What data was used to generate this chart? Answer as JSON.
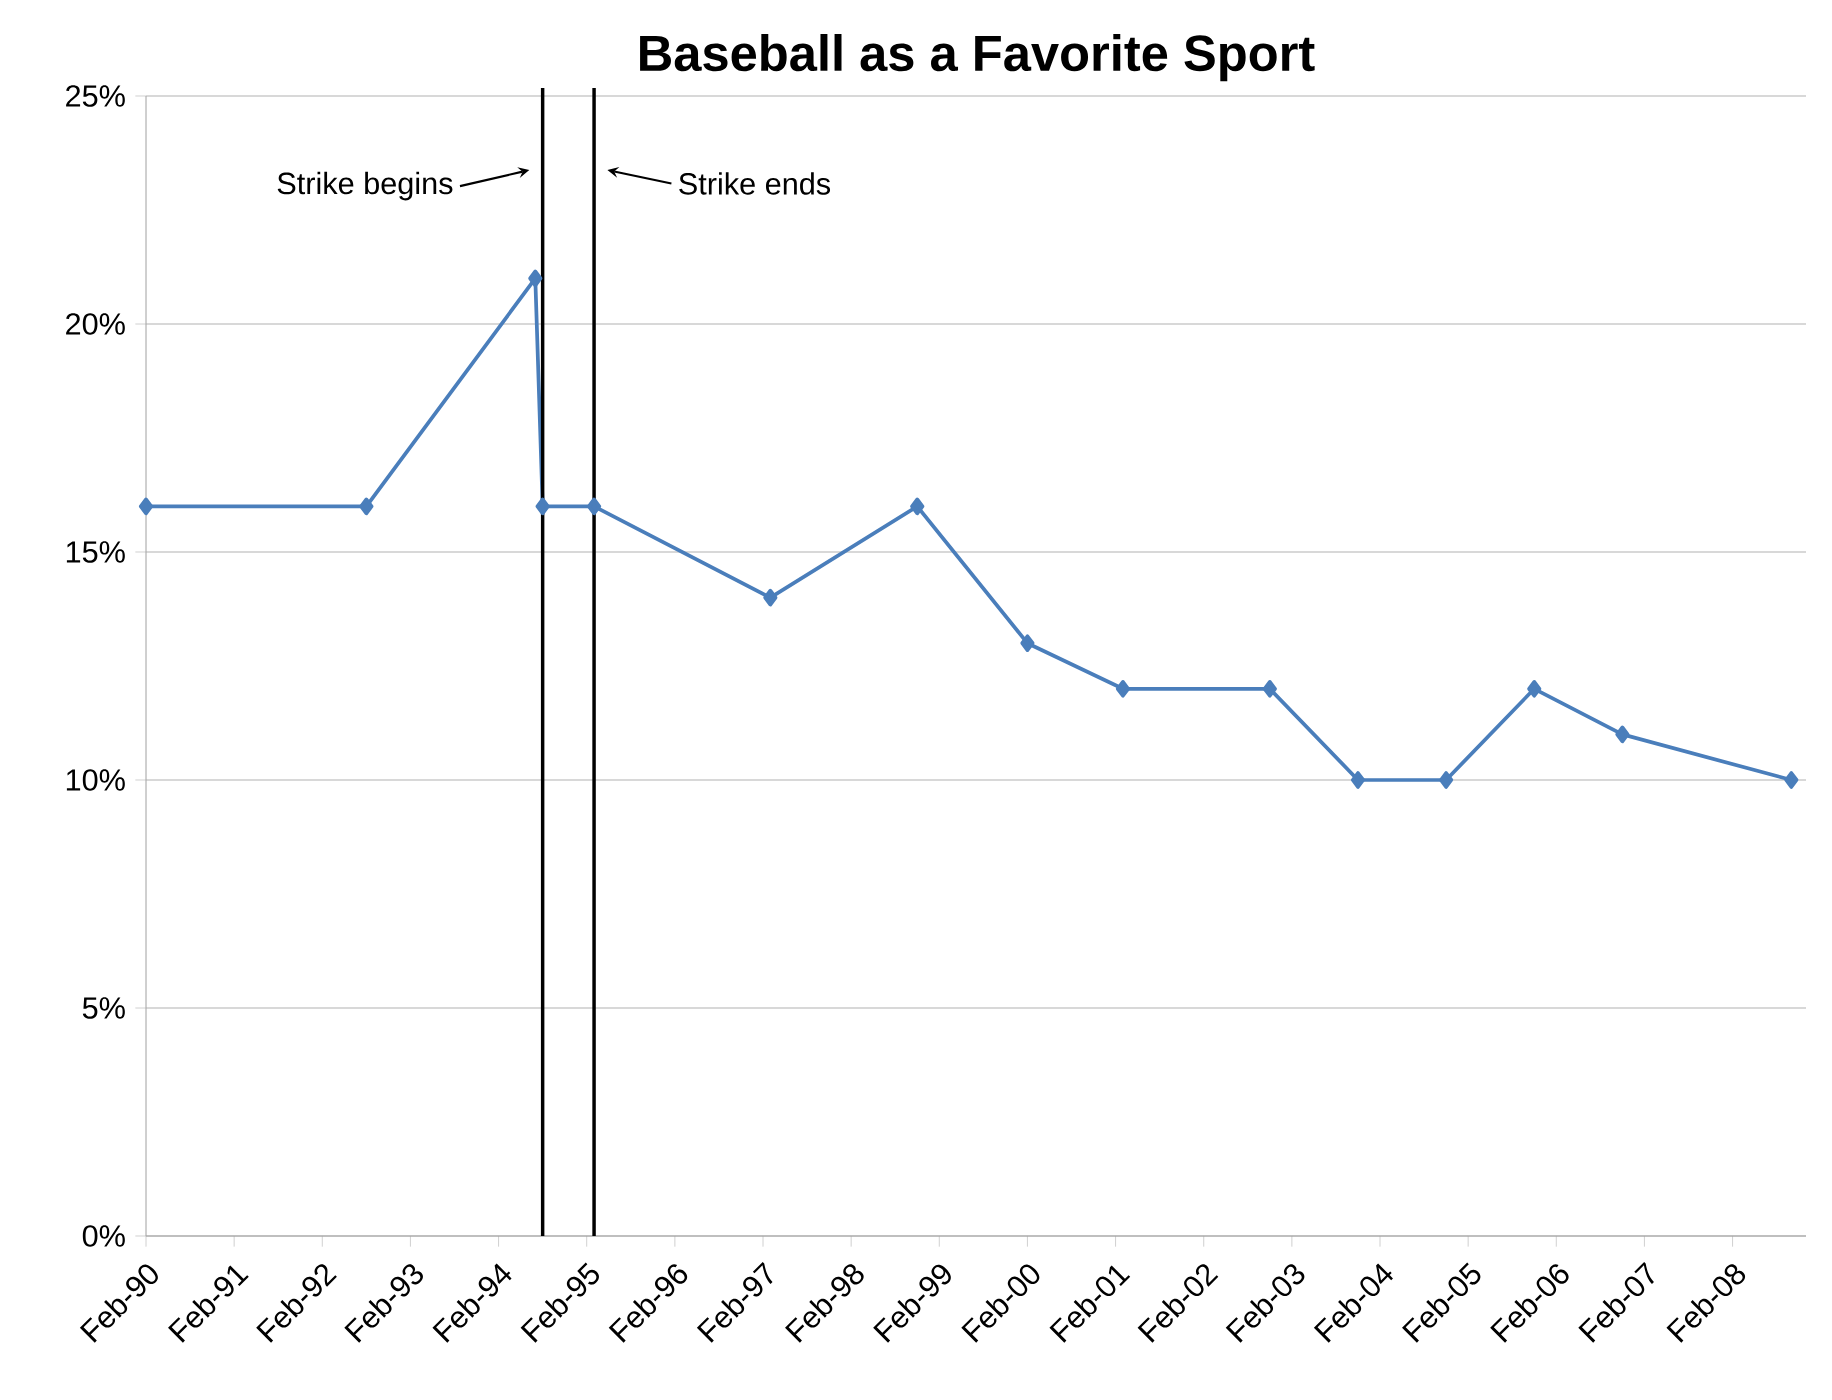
{
  "chart_data": {
    "type": "line",
    "title": "Baseball as a Favorite Sport",
    "x": [
      "1990-02",
      "1992-08",
      "1994-07",
      "1994-08",
      "1995-03",
      "1997-03",
      "1998-11",
      "2000-02",
      "2001-03",
      "2002-11",
      "2003-11",
      "2004-11",
      "2005-11",
      "2006-11",
      "2008-10"
    ],
    "series": [
      {
        "color": "#4a7ebb",
        "values": [
          16,
          16,
          21,
          16,
          16,
          14,
          16,
          13,
          12,
          12,
          10,
          10,
          12,
          11,
          10
        ]
      }
    ],
    "xlim": [
      "1990-02",
      "2008-12"
    ],
    "xticks": [
      {
        "value": "1990-02",
        "label": "Feb-90"
      },
      {
        "value": "1991-02",
        "label": "Feb-91"
      },
      {
        "value": "1992-02",
        "label": "Feb-92"
      },
      {
        "value": "1993-02",
        "label": "Feb-93"
      },
      {
        "value": "1994-02",
        "label": "Feb-94"
      },
      {
        "value": "1995-02",
        "label": "Feb-95"
      },
      {
        "value": "1996-02",
        "label": "Feb-96"
      },
      {
        "value": "1997-02",
        "label": "Feb-97"
      },
      {
        "value": "1998-02",
        "label": "Feb-98"
      },
      {
        "value": "1999-02",
        "label": "Feb-99"
      },
      {
        "value": "2000-02",
        "label": "Feb-00"
      },
      {
        "value": "2001-02",
        "label": "Feb-01"
      },
      {
        "value": "2002-02",
        "label": "Feb-02"
      },
      {
        "value": "2003-02",
        "label": "Feb-03"
      },
      {
        "value": "2004-02",
        "label": "Feb-04"
      },
      {
        "value": "2005-02",
        "label": "Feb-05"
      },
      {
        "value": "2006-02",
        "label": "Feb-06"
      },
      {
        "value": "2007-02",
        "label": "Feb-07"
      },
      {
        "value": "2008-02",
        "label": "Feb-08"
      }
    ],
    "ylim": [
      0,
      25
    ],
    "yticks": [
      {
        "value": 0,
        "label": "0%"
      },
      {
        "value": 5,
        "label": "5%"
      },
      {
        "value": 10,
        "label": "10%"
      },
      {
        "value": 15,
        "label": "15%"
      },
      {
        "value": 20,
        "label": "20%"
      },
      {
        "value": 25,
        "label": "25%"
      }
    ],
    "ref_lines": [
      {
        "axis": "x",
        "value": "1994-08",
        "label": "Strike begins",
        "color": "#000000"
      },
      {
        "axis": "x",
        "value": "1995-03",
        "label": "Strike ends",
        "color": "#000000"
      }
    ],
    "grid": "y",
    "marker": "diamond",
    "line_style": "solid"
  }
}
